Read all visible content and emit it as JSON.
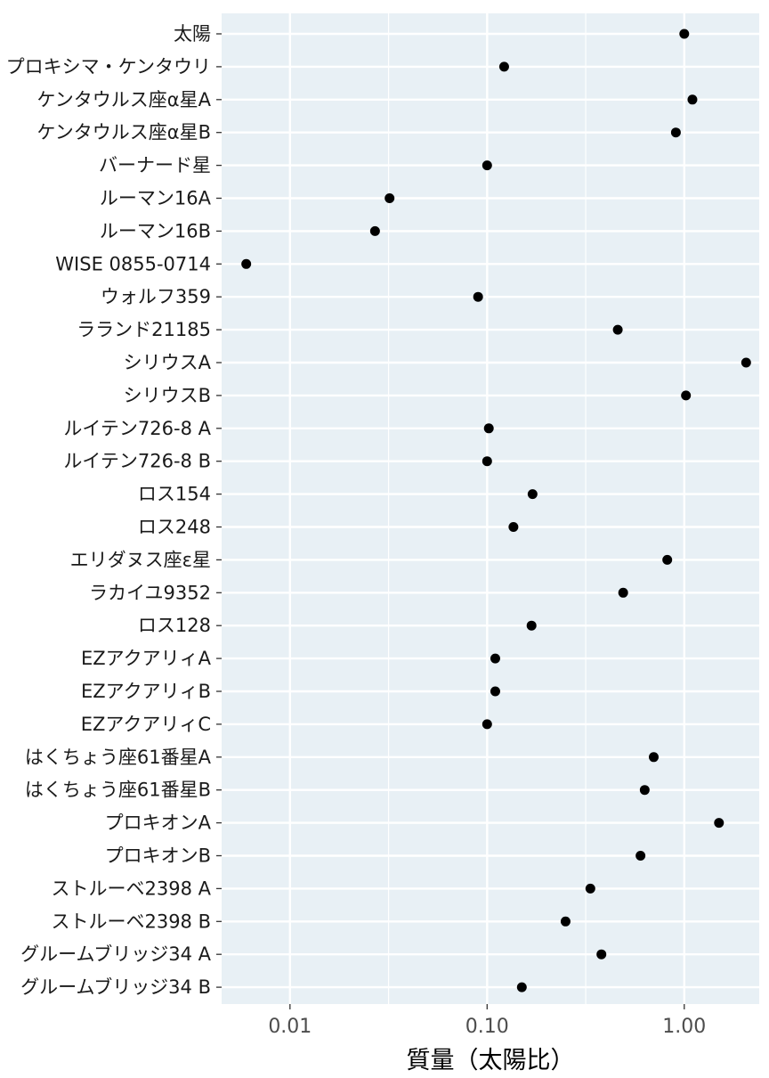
{
  "chart_data": {
    "type": "scatter",
    "title": "",
    "xlabel": "質量（太陽比）",
    "ylabel": "",
    "x_scale": "log",
    "xlim": [
      0.0045,
      2.4
    ],
    "x_ticks": [
      0.01,
      0.1,
      1.0
    ],
    "x_tick_labels": [
      "0.01",
      "0.10",
      "1.00"
    ],
    "grid": true,
    "legend": "none",
    "colors": {
      "panel": "#e8f0f5",
      "grid": "#ffffff",
      "point": "#000000",
      "tick": "#4d4d4d"
    },
    "categories": [
      "太陽",
      "プロキシマ・ケンタウリ",
      "ケンタウルス座α星A",
      "ケンタウルス座α星B",
      "バーナード星",
      "ルーマン16A",
      "ルーマン16B",
      "WISE 0855-0714",
      "ウォルフ359",
      "ラランド21185",
      "シリウスA",
      "シリウスB",
      "ルイテン726-8 A",
      "ルイテン726-8 B",
      "ロス154",
      "ロス248",
      "エリダヌス座ε星",
      "ラカイユ9352",
      "ロス128",
      "EZアクアリィA",
      "EZアクアリィB",
      "EZアクアリィC",
      "はくちょう座61番星A",
      "はくちょう座61番星B",
      "プロキオンA",
      "プロキオンB",
      "ストルーベ2398 A",
      "ストルーベ2398 B",
      "グルームブリッジ34 A",
      "グルームブリッジ34 B"
    ],
    "values": [
      1.0,
      0.122,
      1.1,
      0.907,
      0.1,
      0.032,
      0.027,
      0.006,
      0.09,
      0.46,
      2.06,
      1.02,
      0.102,
      0.1,
      0.17,
      0.136,
      0.82,
      0.49,
      0.168,
      0.11,
      0.11,
      0.1,
      0.7,
      0.63,
      1.5,
      0.6,
      0.334,
      0.25,
      0.38,
      0.15
    ]
  }
}
